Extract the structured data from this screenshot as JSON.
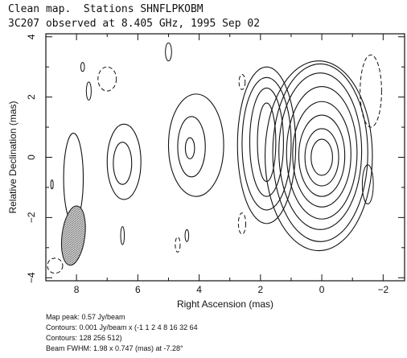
{
  "titles": {
    "line1": "Clean map.  Stations SHNFLPKOBM",
    "line2": "3C207 observed at 8.405 GHz, 1995 Sep 02"
  },
  "info": {
    "peak": "Map peak: 0.57 Jy/beam",
    "contours1": "Contours: 0.001 Jy/beam x (-1 1 2 4 8 16 32 64",
    "contours2": "Contours: 128 256 512)",
    "beam": "Beam FWHM: 1.98 x 0.747 (mas) at -7.28°"
  },
  "chart_data": {
    "type": "contour",
    "title": "Clean map.  Stations SHNFLPKOBM",
    "subtitle": "3C207 observed at 8.405 GHz, 1995 Sep 02",
    "xlabel": "Right Ascension  (mas)",
    "ylabel": "Relative Declination  (mas)",
    "xlim": [
      9.0,
      -2.7
    ],
    "ylim": [
      -4.1,
      4.1
    ],
    "x_ticks": [
      8,
      6,
      4,
      2,
      0,
      -2
    ],
    "y_ticks": [
      -4,
      -2,
      0,
      2,
      4
    ],
    "map_peak_jy_per_beam": 0.57,
    "contour_base_jy_per_beam": 0.001,
    "contour_levels": [
      -1,
      1,
      2,
      4,
      8,
      16,
      32,
      64,
      128,
      256,
      512
    ],
    "beam": {
      "major_mas": 1.98,
      "minor_mas": 0.747,
      "pa_deg": -7.28,
      "center": [
        8.1,
        -2.6
      ]
    },
    "components": [
      {
        "name": "core",
        "x": 0.0,
        "y": 0.0,
        "contours": [
          {
            "rx": 0.35,
            "ry": 0.6,
            "dx": 0.0,
            "dy": 0.0
          },
          {
            "rx": 0.55,
            "ry": 0.95,
            "dx": 0.0,
            "dy": 0.0
          },
          {
            "rx": 0.75,
            "ry": 1.35,
            "dx": 0.0,
            "dy": 0.05
          },
          {
            "rx": 0.95,
            "ry": 1.75,
            "dx": 0.0,
            "dy": 0.1
          },
          {
            "rx": 1.15,
            "ry": 2.2,
            "dx": 0.0,
            "dy": 0.15
          },
          {
            "rx": 1.35,
            "ry": 2.6,
            "dx": 0.05,
            "dy": 0.2
          },
          {
            "rx": 1.55,
            "ry": 2.95,
            "dx": 0.05,
            "dy": 0.15
          },
          {
            "rx": 1.75,
            "ry": 3.15,
            "dx": 0.1,
            "dy": 0.05
          }
        ]
      },
      {
        "name": "jet-knot-1.8",
        "x": 1.8,
        "y": 0.5,
        "contours": [
          {
            "rx": 0.3,
            "ry": 1.3,
            "dx": 0.0,
            "dy": 0.0
          },
          {
            "rx": 0.55,
            "ry": 1.8,
            "dx": 0.0,
            "dy": 0.0
          },
          {
            "rx": 0.8,
            "ry": 2.2,
            "dx": 0.0,
            "dy": -0.05
          },
          {
            "rx": 0.95,
            "ry": 2.6,
            "dx": 0.0,
            "dy": -0.1
          }
        ]
      },
      {
        "name": "knot-4.3",
        "x": 4.3,
        "y": 0.3,
        "contours": [
          {
            "rx": 0.15,
            "ry": 0.35,
            "dx": 0.0,
            "dy": 0.0
          },
          {
            "rx": 0.45,
            "ry": 1.0,
            "dx": -0.05,
            "dy": 0.05
          },
          {
            "rx": 0.9,
            "ry": 1.7,
            "dx": -0.2,
            "dy": 0.1
          }
        ]
      },
      {
        "name": "knot-6.5",
        "x": 6.5,
        "y": -0.2,
        "contours": [
          {
            "rx": 0.3,
            "ry": 0.7,
            "dx": 0.0,
            "dy": 0.0
          },
          {
            "rx": 0.55,
            "ry": 1.25,
            "dx": -0.05,
            "dy": 0.05
          }
        ]
      },
      {
        "name": "knot-8.1",
        "x": 8.1,
        "y": -0.7,
        "contours": [
          {
            "rx": 0.32,
            "ry": 1.5,
            "dx": 0.0,
            "dy": 0.0
          }
        ]
      }
    ],
    "negative_contours": [
      {
        "x": -1.6,
        "y": 2.2,
        "rx": 0.35,
        "ry": 1.2
      },
      {
        "x": 7.0,
        "y": 2.6,
        "rx": 0.3,
        "ry": 0.4
      },
      {
        "x": 2.6,
        "y": 2.5,
        "rx": 0.1,
        "ry": 0.25
      },
      {
        "x": 2.6,
        "y": -2.2,
        "rx": 0.12,
        "ry": 0.35
      },
      {
        "x": 4.7,
        "y": -2.9,
        "rx": 0.08,
        "ry": 0.25
      },
      {
        "x": 8.7,
        "y": -3.6,
        "rx": 0.25,
        "ry": 0.25
      }
    ],
    "small_positive_contours": [
      {
        "x": 5.0,
        "y": 3.5,
        "rx": 0.1,
        "ry": 0.3
      },
      {
        "x": 7.6,
        "y": 2.2,
        "rx": 0.08,
        "ry": 0.3
      },
      {
        "x": 7.8,
        "y": 3.0,
        "rx": 0.06,
        "ry": 0.15
      },
      {
        "x": -1.5,
        "y": -0.9,
        "rx": 0.18,
        "ry": 0.65
      },
      {
        "x": 6.5,
        "y": -2.6,
        "rx": 0.06,
        "ry": 0.3
      },
      {
        "x": 4.4,
        "y": -2.6,
        "rx": 0.06,
        "ry": 0.2
      },
      {
        "x": 8.8,
        "y": -0.9,
        "rx": 0.04,
        "ry": 0.15
      }
    ]
  }
}
